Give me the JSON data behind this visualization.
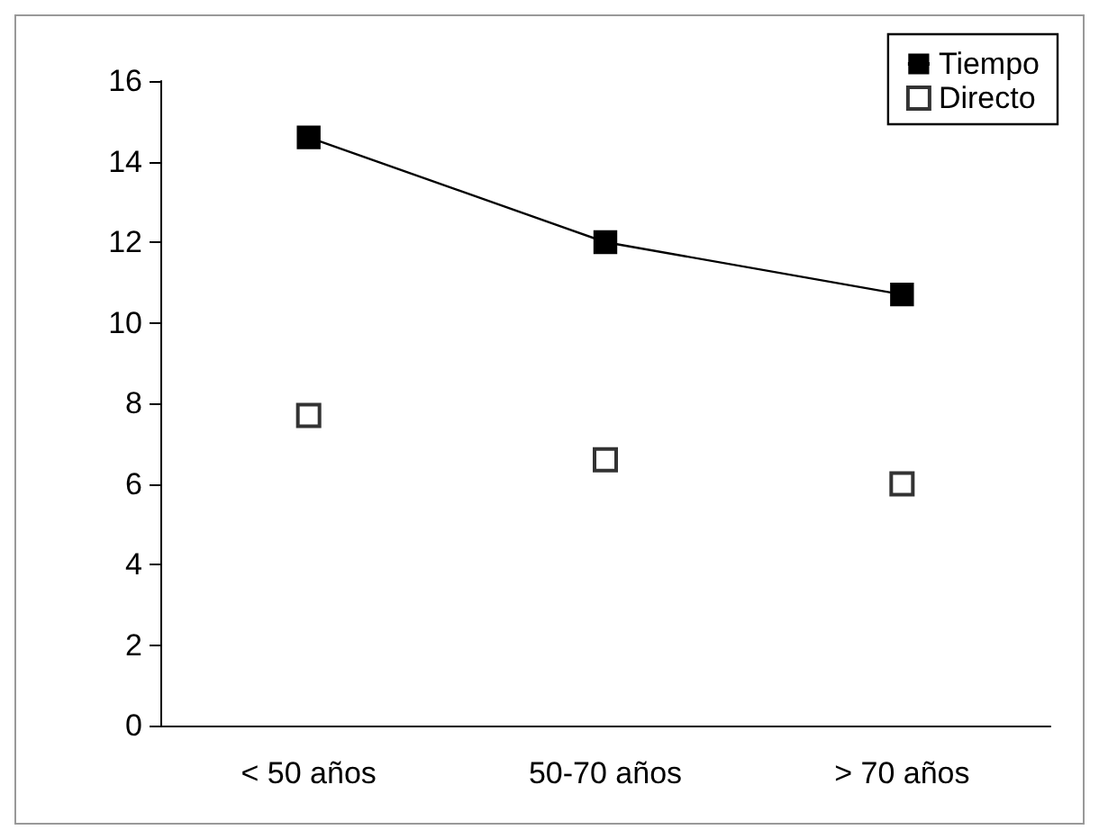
{
  "chart_data": {
    "type": "line",
    "categories": [
      "< 50 años",
      "50-70 años",
      "> 70 años"
    ],
    "series": [
      {
        "name": "Tiempo",
        "color": "#000000",
        "marker": "square",
        "values": [
          14.6,
          12.0,
          10.7
        ]
      },
      {
        "name": "Directo",
        "type": "scatter",
        "color": "#000000",
        "marker": "square",
        "values": [
          7.7,
          6.6,
          6.0
        ]
      }
    ],
    "ylim": [
      0,
      16
    ],
    "yticks": [
      0,
      2,
      4,
      6,
      8,
      10,
      12,
      14,
      16
    ],
    "grid": false,
    "legend": "top right"
  }
}
